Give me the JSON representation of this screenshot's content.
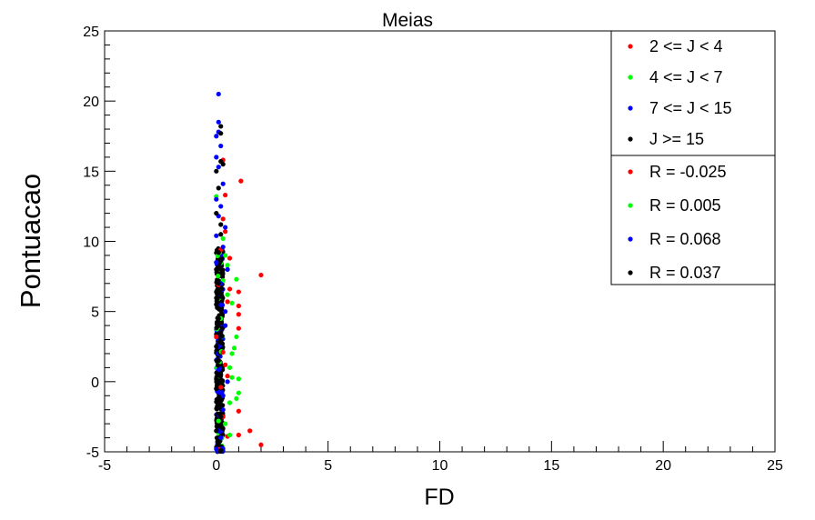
{
  "chart_data": {
    "type": "scatter",
    "title": "Meias",
    "xlabel": "FD",
    "ylabel": "Pontuacao",
    "xlim": [
      -5,
      25
    ],
    "ylim": [
      -5,
      25
    ],
    "x_ticks": [
      "-5",
      "0",
      "5",
      "10",
      "15",
      "20",
      "25"
    ],
    "y_ticks": [
      "-5",
      "0",
      "5",
      "10",
      "15",
      "20",
      "25"
    ],
    "grid": false,
    "legend_position": "top-right",
    "series": [
      {
        "name": "2 <= J < 4",
        "color": "#ff0000",
        "points": [
          [
            2.0,
            7.6
          ],
          [
            1.1,
            14.3
          ],
          [
            1.0,
            6.4
          ],
          [
            1.0,
            5.4
          ],
          [
            1.0,
            4.8
          ],
          [
            1.0,
            3.8
          ],
          [
            0.6,
            8.8
          ],
          [
            0.6,
            6.6
          ],
          [
            0.5,
            5.7
          ],
          [
            0.4,
            10.7
          ],
          [
            0.4,
            13.3
          ],
          [
            0.3,
            15.8
          ],
          [
            1.0,
            -2.1
          ],
          [
            1.0,
            -3.8
          ],
          [
            1.5,
            -3.5
          ],
          [
            2.0,
            -4.5
          ],
          [
            0.5,
            -3.9
          ],
          [
            0.3,
            -2.5
          ],
          [
            0.2,
            -0.4
          ],
          [
            0.4,
            1.2
          ],
          [
            0.3,
            2.1
          ],
          [
            0.5,
            0.4
          ],
          [
            0.1,
            -4.8
          ],
          [
            0.2,
            9.4
          ],
          [
            0.3,
            11.6
          ],
          [
            0.0,
            3.2
          ],
          [
            0.1,
            6.9
          ]
        ]
      },
      {
        "name": "4 <= J < 7",
        "color": "#00ff00",
        "points": [
          [
            0.9,
            7.3
          ],
          [
            0.7,
            5.6
          ],
          [
            0.9,
            3.2
          ],
          [
            0.8,
            2.4
          ],
          [
            1.0,
            0.2
          ],
          [
            0.7,
            0.3
          ],
          [
            0.6,
            1.0
          ],
          [
            0.6,
            -3.8
          ],
          [
            0.9,
            -1.2
          ],
          [
            1.0,
            -0.8
          ],
          [
            0.5,
            8.3
          ],
          [
            0.4,
            9.0
          ],
          [
            0.3,
            10.2
          ],
          [
            0.0,
            13.2
          ],
          [
            0.6,
            -1.5
          ],
          [
            0.4,
            -3.0
          ],
          [
            0.2,
            4.5
          ],
          [
            0.3,
            7.2
          ],
          [
            0.5,
            6.2
          ],
          [
            0.1,
            -2.8
          ],
          [
            0.7,
            2.0
          ]
        ]
      },
      {
        "name": "7 <= J < 15",
        "color": "#0000ff",
        "points": [
          [
            0.1,
            20.5
          ],
          [
            0.1,
            18.5
          ],
          [
            0.1,
            17.8
          ],
          [
            0.0,
            17.5
          ],
          [
            0.2,
            16.8
          ],
          [
            0.0,
            16.0
          ],
          [
            0.1,
            15.3
          ],
          [
            0.3,
            14.1
          ],
          [
            0.0,
            13.0
          ],
          [
            0.2,
            12.5
          ],
          [
            0.1,
            11.8
          ],
          [
            0.4,
            11.0
          ],
          [
            0.0,
            10.4
          ],
          [
            0.3,
            9.6
          ],
          [
            0.0,
            8.5
          ],
          [
            0.5,
            8.0
          ],
          [
            0.2,
            7.0
          ],
          [
            0.4,
            4.0
          ],
          [
            0.2,
            -4.0
          ],
          [
            0.0,
            -4.8
          ],
          [
            0.3,
            -1.0
          ],
          [
            0.1,
            2.5
          ],
          [
            0.5,
            0.0
          ],
          [
            0.3,
            -2.0
          ],
          [
            0.1,
            -3.5
          ],
          [
            0.4,
            5.0
          ]
        ]
      },
      {
        "name": "J >= 15",
        "color": "#000000",
        "points": [
          [
            0.2,
            18.2
          ],
          [
            0.2,
            17.7
          ],
          [
            0.2,
            15.7
          ],
          [
            0.3,
            15.5
          ],
          [
            0.0,
            15.0
          ],
          [
            0.1,
            13.8
          ],
          [
            0.0,
            12.0
          ],
          [
            0.2,
            11.2
          ],
          [
            0.2,
            10.5
          ],
          [
            0.1,
            9.2
          ],
          [
            0.0,
            8.0
          ],
          [
            0.1,
            7.0
          ],
          [
            0.2,
            6.2
          ],
          [
            0.0,
            5.5
          ],
          [
            0.1,
            4.5
          ],
          [
            0.2,
            3.5
          ],
          [
            0.0,
            2.5
          ],
          [
            0.1,
            1.5
          ],
          [
            0.2,
            0.5
          ],
          [
            0.0,
            -0.5
          ],
          [
            0.1,
            -1.5
          ],
          [
            0.2,
            -2.5
          ],
          [
            0.0,
            -3.5
          ],
          [
            0.1,
            -4.5
          ],
          [
            0.2,
            -4.9
          ]
        ]
      }
    ],
    "dense_band": {
      "x_min": 0.0,
      "x_max": 0.3,
      "y_min": -5.0,
      "y_max": 9.5,
      "colors": [
        "#000000",
        "#0000ff",
        "#00ff00"
      ]
    },
    "correlations": [
      {
        "label": "R = -0.025",
        "color": "#ff0000"
      },
      {
        "label": "R = 0.005",
        "color": "#00ff00"
      },
      {
        "label": "R = 0.068",
        "color": "#0000ff"
      },
      {
        "label": "R = 0.037",
        "color": "#000000"
      }
    ]
  }
}
